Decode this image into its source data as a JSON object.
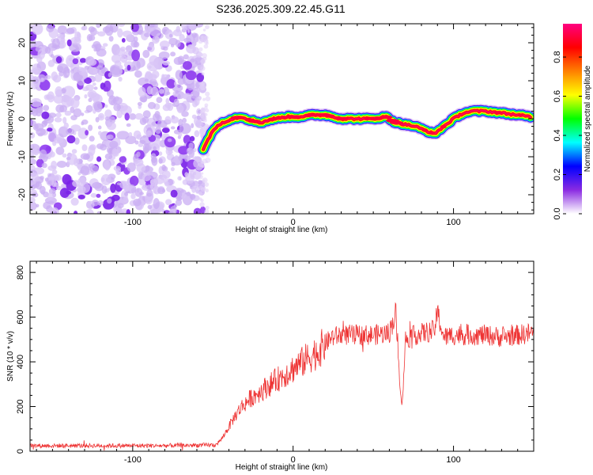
{
  "title": "S236.2025.309.22.45.G11",
  "chart_data": [
    {
      "type": "heatmap",
      "name": "spectrogram",
      "xlabel": "Height of straight line (km)",
      "ylabel": "Frequency (Hz)",
      "xlim": [
        -164,
        150
      ],
      "ylim": [
        -25,
        25
      ],
      "xticks": [
        -100,
        0,
        100
      ],
      "yticks": [
        -20,
        -10,
        0,
        10,
        20
      ],
      "noise_region_x": [
        -164,
        -56
      ],
      "track": {
        "x": [
          -56,
          -50,
          -44,
          -38,
          -32,
          -26,
          -20,
          -12,
          -4,
          4,
          12,
          20,
          30,
          40,
          50,
          58,
          64,
          70,
          76,
          82,
          88,
          94,
          100,
          106,
          112,
          120,
          130,
          140,
          148
        ],
        "y": [
          -8,
          -3,
          -1,
          0,
          0.5,
          -0.5,
          -1,
          0,
          0.5,
          0.5,
          1,
          1,
          0,
          0,
          0,
          0.5,
          -1,
          -1.5,
          -2,
          -3,
          -4,
          -2,
          0,
          1.5,
          2,
          2,
          1.5,
          1,
          0.5
        ]
      },
      "colorbar": {
        "label": "Normalized spectral amplitude",
        "min": 0.0,
        "max": 0.97,
        "ticks": [
          0.0,
          0.2,
          0.4,
          0.6,
          0.8
        ],
        "tick_labels": [
          "0.0",
          "0.2",
          "0.4",
          "0.6",
          "0.8"
        ],
        "stops": [
          "#ffffff",
          "#8a2be2",
          "#0000ff",
          "#00ffff",
          "#00ff00",
          "#ffff00",
          "#ff8000",
          "#ff0000",
          "#ff0080"
        ]
      }
    },
    {
      "type": "line",
      "name": "snr",
      "xlabel": "Height of straight line (km)",
      "ylabel": "SNR (10 * v/v)",
      "xlim": [
        -164,
        150
      ],
      "ylim": [
        0,
        850
      ],
      "xticks": [
        -100,
        0,
        100
      ],
      "yticks": [
        0,
        200,
        400,
        600,
        800
      ],
      "color": "#ee3333",
      "series": [
        {
          "name": "SNR",
          "x": [
            -164,
            -120,
            -80,
            -48,
            -44,
            -40,
            -36,
            -32,
            -26,
            -20,
            -14,
            -8,
            -2,
            4,
            10,
            16,
            20,
            24,
            30,
            40,
            50,
            60,
            64,
            66,
            68,
            70,
            76,
            82,
            88,
            90,
            94,
            100,
            110,
            120,
            130,
            140,
            150
          ],
          "y": [
            25,
            25,
            25,
            28,
            60,
            110,
            160,
            200,
            240,
            270,
            300,
            330,
            360,
            390,
            420,
            450,
            480,
            510,
            520,
            520,
            520,
            530,
            620,
            360,
            200,
            500,
            520,
            530,
            540,
            620,
            510,
            520,
            520,
            520,
            510,
            520,
            530
          ]
        }
      ]
    }
  ]
}
